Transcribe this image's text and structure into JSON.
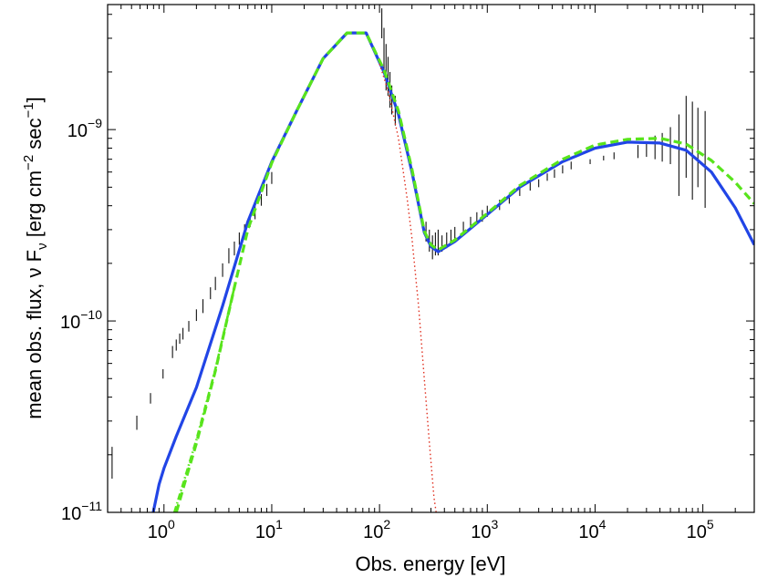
{
  "chart_data": {
    "type": "line",
    "xscale": "log",
    "yscale": "log",
    "xlim": [
      0.3,
      300000
    ],
    "ylim": [
      1e-11,
      4.5e-09
    ],
    "xlabel": "Obs. energy [eV]",
    "ylabel_parts": [
      "mean obs. flux, ",
      "ν",
      " F",
      "ν",
      " [erg cm",
      "−2",
      " sec",
      "−1",
      "]"
    ],
    "x_ticks": [
      {
        "value": 1,
        "base": "10",
        "exp": "0"
      },
      {
        "value": 10,
        "base": "10",
        "exp": "1"
      },
      {
        "value": 100,
        "base": "10",
        "exp": "2"
      },
      {
        "value": 1000,
        "base": "10",
        "exp": "3"
      },
      {
        "value": 10000,
        "base": "10",
        "exp": "4"
      },
      {
        "value": 100000,
        "base": "10",
        "exp": "5"
      }
    ],
    "y_ticks": [
      {
        "value": 1e-11,
        "base": "10",
        "exp": "−11"
      },
      {
        "value": 1e-10,
        "base": "10",
        "exp": "−10"
      },
      {
        "value": 1e-09,
        "base": "10",
        "exp": "−9"
      }
    ],
    "series": [
      {
        "style": "solid",
        "color": "#2145e6",
        "x": [
          0.78,
          0.9,
          1.0,
          1.3,
          2.0,
          3.5,
          6.0,
          10,
          17,
          30,
          50,
          75,
          110,
          150,
          200,
          260,
          300,
          350,
          500,
          1000,
          2000,
          5000,
          10000,
          20000,
          40000,
          70000,
          120000,
          200000,
          300000
        ],
        "y": [
          9.5e-12,
          1.4e-11,
          1.7e-11,
          2.5e-11,
          4.5e-11,
          1.2e-10,
          3.3e-10,
          6.8e-10,
          1.25e-09,
          2.35e-09,
          3.2e-09,
          3.2e-09,
          2e-09,
          1.2e-09,
          6e-10,
          2.9e-10,
          2.45e-10,
          2.3e-10,
          2.6e-10,
          3.6e-10,
          5e-10,
          6.8e-10,
          8e-10,
          8.6e-10,
          8.5e-10,
          7.8e-10,
          6e-10,
          3.9e-10,
          2.5e-10
        ]
      },
      {
        "style": "dashed",
        "color": "#58e41c",
        "x": [
          1.3,
          1.6,
          2.0,
          3.0,
          4.5,
          6.0,
          10,
          17,
          30,
          50,
          75,
          110,
          150,
          200,
          260,
          300,
          350,
          500,
          1000,
          2000,
          5000,
          10000,
          20000,
          40000,
          70000,
          120000,
          200000,
          300000
        ],
        "y": [
          1e-11,
          1.5e-11,
          2.3e-11,
          5.5e-11,
          1.5e-10,
          3e-10,
          6.7e-10,
          1.25e-09,
          2.35e-09,
          3.2e-09,
          3.2e-09,
          2.05e-09,
          1.25e-09,
          6.2e-10,
          2.95e-10,
          2.5e-10,
          2.35e-10,
          2.65e-10,
          3.65e-10,
          5.1e-10,
          7e-10,
          8.3e-10,
          8.9e-10,
          9e-10,
          8.4e-10,
          6.9e-10,
          5.3e-10,
          4.1e-10
        ]
      },
      {
        "style": "dotted",
        "color": "#e03020",
        "x": [
          100,
          120,
          150,
          180,
          200,
          230,
          260,
          290,
          320,
          340
        ],
        "y": [
          2.2e-09,
          1.6e-09,
          9e-10,
          4.4e-10,
          2.7e-10,
          1.2e-10,
          5e-11,
          2.3e-11,
          1.2e-11,
          9.5e-12
        ]
      },
      {
        "style": "dashdot",
        "color": "#58e41c",
        "x": [
          1.25,
          1.5,
          2.0,
          3.0,
          4.5
        ],
        "y": [
          1e-11,
          1.4e-11,
          2.4e-11,
          5.6e-11,
          1.5e-10
        ]
      }
    ],
    "error_bars": [
      [
        0.33,
        1.5e-11,
        2.2e-11
      ],
      [
        0.56,
        2.7e-11,
        3.2e-11
      ],
      [
        0.75,
        3.7e-11,
        4.2e-11
      ],
      [
        0.98,
        5e-11,
        5.6e-11
      ],
      [
        1.2,
        6.4e-11,
        7.4e-11
      ],
      [
        1.3,
        7e-11,
        8e-11
      ],
      [
        1.4,
        7.6e-11,
        8.6e-11
      ],
      [
        1.5,
        8e-11,
        9.2e-11
      ],
      [
        1.7,
        8.8e-11,
        1e-10
      ],
      [
        2.0,
        1e-10,
        1.15e-10
      ],
      [
        2.3,
        1.1e-10,
        1.3e-10
      ],
      [
        2.7,
        1.3e-10,
        1.5e-10
      ],
      [
        3.0,
        1.45e-10,
        1.7e-10
      ],
      [
        3.5,
        1.7e-10,
        2e-10
      ],
      [
        4.0,
        2e-10,
        2.4e-10
      ],
      [
        4.5,
        2.2e-10,
        2.6e-10
      ],
      [
        5.0,
        2.5e-10,
        2.9e-10
      ],
      [
        5.6,
        2.8e-10,
        3.2e-10
      ],
      [
        6.3,
        3.1e-10,
        3.6e-10
      ],
      [
        7.0,
        3.4e-10,
        4e-10
      ],
      [
        8.0,
        4e-10,
        4.6e-10
      ],
      [
        9.0,
        4.5e-10,
        5.2e-10
      ],
      [
        10,
        5.2e-10,
        6e-10
      ],
      [
        105,
        3e-09,
        4.3e-09
      ],
      [
        110,
        2e-09,
        3.4e-09
      ],
      [
        115,
        1.6e-09,
        2.8e-09
      ],
      [
        120,
        1.5e-09,
        2.4e-09
      ],
      [
        125,
        1.3e-09,
        2e-09
      ],
      [
        130,
        1.2e-09,
        1.7e-09
      ],
      [
        140,
        1.05e-09,
        1.5e-09
      ],
      [
        270,
        2.6e-10,
        3.3e-10
      ],
      [
        290,
        2.3e-10,
        3e-10
      ],
      [
        310,
        2.1e-10,
        2.8e-10
      ],
      [
        330,
        2.2e-10,
        2.9e-10
      ],
      [
        350,
        2.2e-10,
        3e-10
      ],
      [
        380,
        2.3e-10,
        2.8e-10
      ],
      [
        420,
        2.4e-10,
        2.9e-10
      ],
      [
        460,
        2.5e-10,
        3e-10
      ],
      [
        500,
        2.6e-10,
        3.1e-10
      ],
      [
        600,
        2.8e-10,
        3.3e-10
      ],
      [
        700,
        3e-10,
        3.5e-10
      ],
      [
        800,
        3.2e-10,
        3.7e-10
      ],
      [
        900,
        3.3e-10,
        3.8e-10
      ],
      [
        1000,
        3.5e-10,
        4e-10
      ],
      [
        1300,
        3.8e-10,
        4.3e-10
      ],
      [
        1600,
        4.1e-10,
        4.6e-10
      ],
      [
        2000,
        4.5e-10,
        5e-10
      ],
      [
        2500,
        4.8e-10,
        5.3e-10
      ],
      [
        3000,
        5e-10,
        5.5e-10
      ],
      [
        3600,
        5.4e-10,
        5.9e-10
      ],
      [
        4200,
        5.6e-10,
        6.2e-10
      ],
      [
        5000,
        5.9e-10,
        6.5e-10
      ],
      [
        6000,
        6.2e-10,
        6.8e-10
      ],
      [
        9000,
        6.6e-10,
        7e-10
      ],
      [
        12000,
        6.9e-10,
        7.3e-10
      ],
      [
        15000,
        7e-10,
        7.6e-10
      ],
      [
        25000,
        7.1e-10,
        8.3e-10
      ],
      [
        30000,
        7.2e-10,
        8.6e-10
      ],
      [
        36000,
        7e-10,
        9.3e-10
      ],
      [
        42000,
        6.8e-10,
        9.6e-10
      ],
      [
        50000,
        6.6e-10,
        1.03e-09
      ],
      [
        60000,
        4.5e-10,
        1.2e-09
      ],
      [
        70000,
        5.6e-10,
        1.5e-09
      ],
      [
        80000,
        4.3e-10,
        1.4e-09
      ],
      [
        90000,
        5e-10,
        1.3e-09
      ],
      [
        105000,
        3.9e-10,
        1.25e-09
      ]
    ]
  }
}
